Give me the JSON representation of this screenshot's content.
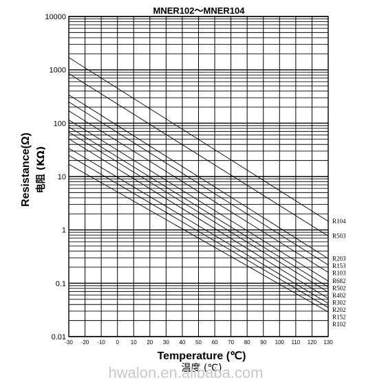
{
  "chart_data": {
    "type": "line",
    "title": "MNER102～MNER104",
    "xlabel": "Temperature (℃)",
    "xlabel_cn": "温度 (℃)",
    "ylabel": "Resistance(Ω)",
    "ylabel_cn": "电阻 (KΩ)",
    "y_scale": "log",
    "xlim": [
      -30,
      130
    ],
    "ylim": [
      0.01,
      10000
    ],
    "x_ticks": [
      -30,
      -20,
      -10,
      0,
      10,
      20,
      30,
      40,
      50,
      60,
      70,
      80,
      90,
      100,
      110,
      120,
      130
    ],
    "y_ticks": [
      {
        "value": 10000,
        "label": "10000"
      },
      {
        "value": 1000,
        "label": "1000"
      },
      {
        "value": 100,
        "label": "100"
      },
      {
        "value": 10,
        "label": "10"
      },
      {
        "value": 1,
        "label": "1"
      },
      {
        "value": 0.1,
        "label": "0.1"
      },
      {
        "value": 0.01,
        "label": "0.01"
      }
    ],
    "grid": true,
    "legend": "right",
    "series": [
      {
        "name": "R104",
        "points": [
          [
            -30,
            1700
          ],
          [
            130,
            1.45
          ]
        ]
      },
      {
        "name": "R503",
        "points": [
          [
            -30,
            850
          ],
          [
            130,
            0.77
          ]
        ]
      },
      {
        "name": "R203",
        "points": [
          [
            -30,
            340
          ],
          [
            130,
            0.29
          ]
        ]
      },
      {
        "name": "R153",
        "points": [
          [
            -30,
            250
          ],
          [
            130,
            0.22
          ]
        ]
      },
      {
        "name": "R103",
        "points": [
          [
            -30,
            170
          ],
          [
            130,
            0.16
          ]
        ]
      },
      {
        "name": "R682",
        "points": [
          [
            -30,
            115
          ],
          [
            130,
            0.11
          ]
        ]
      },
      {
        "name": "R502",
        "points": [
          [
            -30,
            85
          ],
          [
            130,
            0.085
          ]
        ]
      },
      {
        "name": "R402",
        "points": [
          [
            -30,
            68
          ],
          [
            130,
            0.068
          ]
        ]
      },
      {
        "name": "R302",
        "points": [
          [
            -30,
            51
          ],
          [
            130,
            0.052
          ]
        ]
      },
      {
        "name": "R202",
        "points": [
          [
            -30,
            34
          ],
          [
            130,
            0.042
          ]
        ]
      },
      {
        "name": "R152",
        "points": [
          [
            -30,
            25
          ],
          [
            130,
            0.035
          ]
        ]
      },
      {
        "name": "R102",
        "points": [
          [
            -30,
            17
          ],
          [
            130,
            0.029
          ]
        ]
      }
    ]
  },
  "watermark": "hwalon.en.alibaba.com"
}
